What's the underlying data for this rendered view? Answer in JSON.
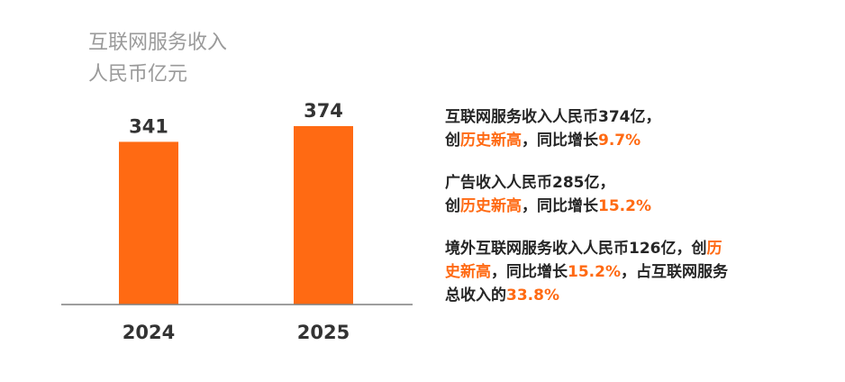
{
  "accent": "#ff6a13",
  "chart_data": {
    "type": "bar",
    "ylabel_lines": [
      "互联网服务收入",
      "人民币亿元"
    ],
    "categories": [
      "2024",
      "2025"
    ],
    "values": [
      341,
      374
    ],
    "data_labels": [
      "341",
      "374"
    ],
    "ylim": [
      0,
      440
    ],
    "grid": false,
    "bar_color": "#ff6a13"
  },
  "notes": [
    {
      "lines": [
        [
          {
            "text": "互联网服务收入人民币374亿，",
            "hl": false
          }
        ],
        [
          {
            "text": "创",
            "hl": false
          },
          {
            "text": "历史新高",
            "hl": true
          },
          {
            "text": "，同比增长",
            "hl": false
          },
          {
            "text": "9.7%",
            "hl": true
          }
        ]
      ]
    },
    {
      "lines": [
        [
          {
            "text": "广告收入人民币285亿，",
            "hl": false
          }
        ],
        [
          {
            "text": "创",
            "hl": false
          },
          {
            "text": "历史新高",
            "hl": true
          },
          {
            "text": "，同比增长",
            "hl": false
          },
          {
            "text": "15.2%",
            "hl": true
          }
        ]
      ]
    },
    {
      "lines": [
        [
          {
            "text": "境外互联网服务收入人民币126亿，创",
            "hl": false
          },
          {
            "text": "历",
            "hl": true
          }
        ],
        [
          {
            "text": "史新高",
            "hl": true
          },
          {
            "text": "，同比增长",
            "hl": false
          },
          {
            "text": "15.2%",
            "hl": true
          },
          {
            "text": "，占互联网服务",
            "hl": false
          }
        ],
        [
          {
            "text": "总收入的",
            "hl": false
          },
          {
            "text": "33.8%",
            "hl": true
          }
        ]
      ]
    }
  ]
}
